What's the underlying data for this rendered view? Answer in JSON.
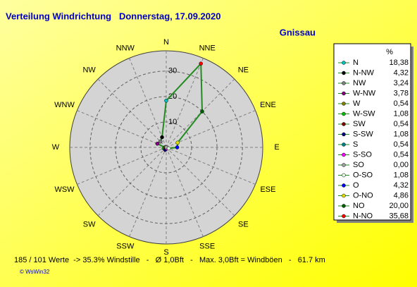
{
  "chart_data": {
    "type": "radar",
    "title": "Verteilung Windrichtung   Donnerstag, 17.09.2020",
    "station": "Gnissau",
    "legend_header": "%",
    "directions": [
      "N",
      "NNE",
      "NE",
      "ENE",
      "E",
      "ESE",
      "SE",
      "SSE",
      "S",
      "SSW",
      "SW",
      "WSW",
      "W",
      "WNW",
      "NW",
      "NNW"
    ],
    "categories": [
      "N",
      "N-NW",
      "NW",
      "W-NW",
      "W",
      "W-SW",
      "SW",
      "S-SW",
      "S",
      "S-SO",
      "SO",
      "O-SO",
      "O",
      "O-NO",
      "NO",
      "N-NO"
    ],
    "values": [
      18.38,
      4.32,
      3.24,
      3.78,
      0.54,
      1.08,
      0.54,
      1.08,
      0.54,
      0.54,
      0.0,
      1.08,
      4.32,
      4.86,
      20.0,
      35.68
    ],
    "value_labels": [
      "18,38",
      "4,32",
      "3,24",
      "3,78",
      "0,54",
      "1,08",
      "0,54",
      "1,08",
      "0,54",
      "0,54",
      "0,00",
      "1,08",
      "4,32",
      "4,86",
      "20,00",
      "35,68"
    ],
    "colors": [
      "#00c0c0",
      "#000000",
      "#808080",
      "#800080",
      "#808000",
      "#00c000",
      "#800000",
      "#000080",
      "#008080",
      "#ff00ff",
      "#a0a0a0",
      "#e0ffe0",
      "#0000ff",
      "#e0e000",
      "#006000",
      "#ff0000"
    ],
    "line_color": "#228b22",
    "rlim": [
      0,
      38
    ],
    "rticks": [
      10,
      20,
      30
    ],
    "footer": "185 / 101 Werte  -> 35.3% Windstille   -   Ø 1,0Bft   -   Max. 3,0Bft = Windböen   -   61.7 km",
    "credit": "© WsWin32"
  }
}
